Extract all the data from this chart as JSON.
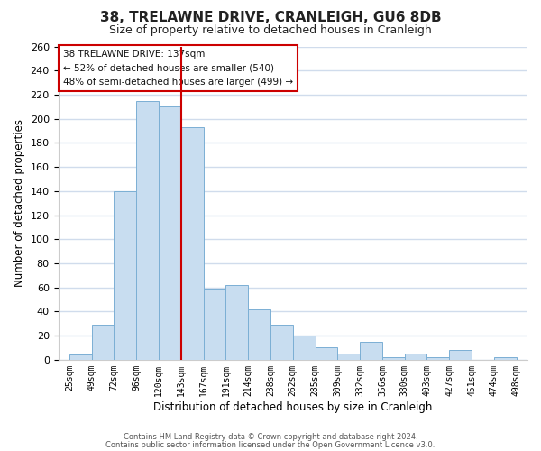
{
  "title": "38, TRELAWNE DRIVE, CRANLEIGH, GU6 8DB",
  "subtitle": "Size of property relative to detached houses in Cranleigh",
  "xlabel": "Distribution of detached houses by size in Cranleigh",
  "ylabel": "Number of detached properties",
  "bar_color": "#c8ddf0",
  "bar_edge_color": "#7bafd4",
  "vline_color": "#cc0000",
  "categories": [
    "25sqm",
    "49sqm",
    "72sqm",
    "96sqm",
    "120sqm",
    "143sqm",
    "167sqm",
    "191sqm",
    "214sqm",
    "238sqm",
    "262sqm",
    "285sqm",
    "309sqm",
    "332sqm",
    "356sqm",
    "380sqm",
    "403sqm",
    "427sqm",
    "451sqm",
    "474sqm",
    "498sqm"
  ],
  "values": [
    4,
    29,
    140,
    215,
    210,
    193,
    59,
    62,
    42,
    29,
    20,
    10,
    5,
    15,
    2,
    5,
    2,
    8,
    0,
    2
  ],
  "ylim": [
    0,
    260
  ],
  "yticks": [
    0,
    20,
    40,
    60,
    80,
    100,
    120,
    140,
    160,
    180,
    200,
    220,
    240,
    260
  ],
  "annotation_title": "38 TRELAWNE DRIVE: 137sqm",
  "annotation_line1": "← 52% of detached houses are smaller (540)",
  "annotation_line2": "48% of semi-detached houses are larger (499) →",
  "footer_line1": "Contains HM Land Registry data © Crown copyright and database right 2024.",
  "footer_line2": "Contains public sector information licensed under the Open Government Licence v3.0.",
  "background_color": "#ffffff",
  "grid_color": "#d0dcec",
  "vline_index": 5
}
